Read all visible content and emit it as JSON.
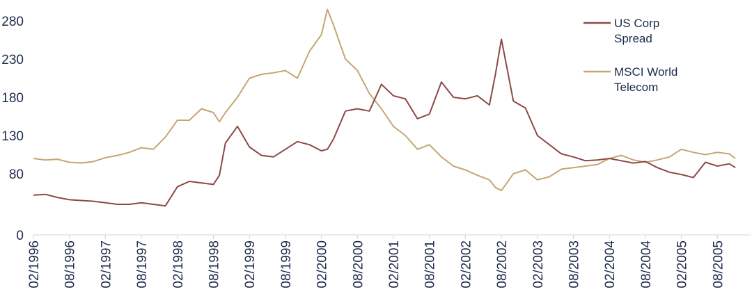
{
  "chart_data": {
    "type": "line",
    "title": "",
    "xlabel": "",
    "ylabel": "",
    "ylim": [
      0,
      300
    ],
    "yticks": [
      "0",
      "80",
      "130",
      "180",
      "230",
      "280"
    ],
    "ytick_values": [
      0,
      80,
      130,
      180,
      230,
      280
    ],
    "grid": false,
    "legend_placement": "top-right",
    "x_tick_labels": [
      "02/1996",
      "08/1996",
      "02/1997",
      "08/1997",
      "02/1998",
      "08/1998",
      "02/1999",
      "08/1999",
      "02/2000",
      "08/2000",
      "02/2001",
      "08/2001",
      "02/2002",
      "08/2002",
      "02/2003",
      "08/2003",
      "02/2004",
      "08/2004",
      "02/2005",
      "08/2005"
    ],
    "x_start": "1996-02",
    "x_end": "2005-11",
    "x": [
      "1996-02",
      "1996-04",
      "1996-06",
      "1996-08",
      "1996-10",
      "1996-12",
      "1997-02",
      "1997-04",
      "1997-06",
      "1997-08",
      "1997-10",
      "1997-12",
      "1998-02",
      "1998-04",
      "1998-06",
      "1998-08",
      "1998-09",
      "1998-10",
      "1998-12",
      "1999-02",
      "1999-04",
      "1999-06",
      "1999-08",
      "1999-10",
      "1999-12",
      "2000-02",
      "2000-03",
      "2000-04",
      "2000-06",
      "2000-08",
      "2000-10",
      "2000-12",
      "2001-02",
      "2001-04",
      "2001-06",
      "2001-08",
      "2001-10",
      "2001-12",
      "2002-02",
      "2002-04",
      "2002-06",
      "2002-07",
      "2002-08",
      "2002-10",
      "2002-12",
      "2003-02",
      "2003-04",
      "2003-06",
      "2003-08",
      "2003-10",
      "2003-12",
      "2004-02",
      "2004-04",
      "2004-06",
      "2004-08",
      "2004-10",
      "2004-12",
      "2005-02",
      "2005-04",
      "2005-06",
      "2005-08",
      "2005-10",
      "2005-11"
    ],
    "series": [
      {
        "name": "US Corp Spread",
        "color": "#8b4a45",
        "values": [
          52,
          53,
          49,
          46,
          45,
          44,
          42,
          40,
          40,
          42,
          40,
          38,
          63,
          70,
          68,
          66,
          78,
          120,
          142,
          115,
          104,
          102,
          112,
          122,
          118,
          110,
          112,
          125,
          162,
          165,
          162,
          197,
          182,
          178,
          152,
          158,
          200,
          180,
          178,
          182,
          170,
          210,
          256,
          175,
          166,
          130,
          118,
          106,
          102,
          97,
          98,
          100,
          97,
          94,
          96,
          88,
          82,
          79,
          75,
          95,
          90,
          93,
          88
        ]
      },
      {
        "name": "MSCI World\nTelecom",
        "color": "#c5a673",
        "values": [
          100,
          98,
          99,
          95,
          94,
          96,
          101,
          104,
          108,
          114,
          112,
          128,
          150,
          150,
          165,
          160,
          148,
          160,
          180,
          205,
          210,
          212,
          215,
          205,
          240,
          262,
          295,
          275,
          230,
          215,
          185,
          165,
          142,
          130,
          112,
          118,
          102,
          90,
          85,
          78,
          72,
          62,
          58,
          80,
          85,
          72,
          76,
          86,
          88,
          90,
          92,
          100,
          104,
          98,
          95,
          98,
          102,
          112,
          108,
          105,
          108,
          106,
          100
        ]
      }
    ]
  }
}
